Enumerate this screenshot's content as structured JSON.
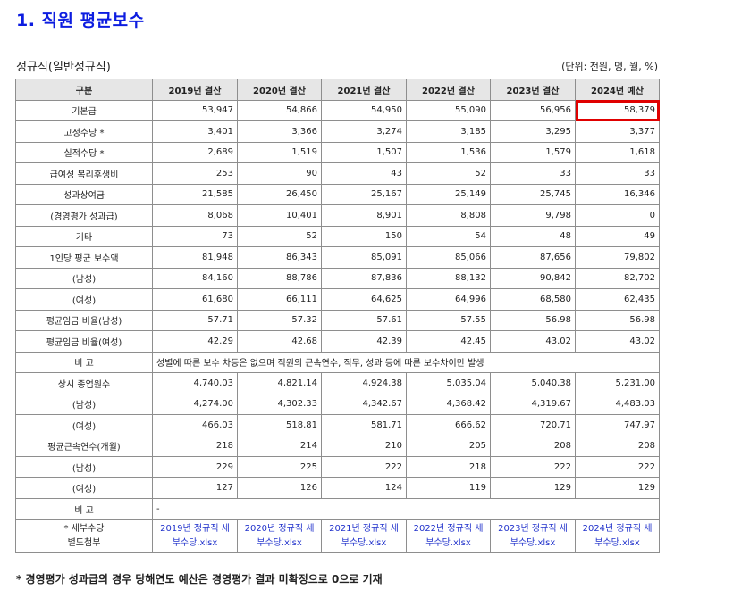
{
  "title": "1. 직원 평균보수",
  "subtitle": "정규직(일반정규직)",
  "unit": "(단위: 천원, 명, 월, %)",
  "header": [
    "구분",
    "2019년 결산",
    "2020년 결산",
    "2021년 결산",
    "2022년 결산",
    "2023년 결산",
    "2024년 예산"
  ],
  "rows1": [
    {
      "label": "기본급",
      "values": [
        "53,947",
        "54,866",
        "54,950",
        "55,090",
        "56,956",
        "58,379"
      ]
    },
    {
      "label": "고정수당 *",
      "values": [
        "3,401",
        "3,366",
        "3,274",
        "3,185",
        "3,295",
        "3,377"
      ]
    },
    {
      "label": "실적수당 *",
      "values": [
        "2,689",
        "1,519",
        "1,507",
        "1,536",
        "1,579",
        "1,618"
      ]
    },
    {
      "label": "급여성 복리후생비",
      "values": [
        "253",
        "90",
        "43",
        "52",
        "33",
        "33"
      ]
    },
    {
      "label": "성과상여금",
      "values": [
        "21,585",
        "26,450",
        "25,167",
        "25,149",
        "25,745",
        "16,346"
      ]
    },
    {
      "label": "(경영평가 성과급)",
      "values": [
        "8,068",
        "10,401",
        "8,901",
        "8,808",
        "9,798",
        "0"
      ]
    },
    {
      "label": "기타",
      "values": [
        "73",
        "52",
        "150",
        "54",
        "48",
        "49"
      ]
    },
    {
      "label": "1인당 평균 보수액",
      "values": [
        "81,948",
        "86,343",
        "85,091",
        "85,066",
        "87,656",
        "79,802"
      ]
    },
    {
      "label": "(남성)",
      "values": [
        "84,160",
        "88,786",
        "87,836",
        "88,132",
        "90,842",
        "82,702"
      ]
    },
    {
      "label": "(여성)",
      "values": [
        "61,680",
        "66,111",
        "64,625",
        "64,996",
        "68,580",
        "62,435"
      ]
    },
    {
      "label": "평균임금 비율(남성)",
      "values": [
        "57.71",
        "57.32",
        "57.61",
        "57.55",
        "56.98",
        "56.98"
      ]
    },
    {
      "label": "평균임금 비율(여성)",
      "values": [
        "42.29",
        "42.68",
        "42.39",
        "42.45",
        "43.02",
        "43.02"
      ]
    }
  ],
  "note1": {
    "label": "비 고",
    "text": "성별에 따른 보수 차등은 없으며 직원의 근속연수, 직무, 성과 등에 따른 보수차이만 발생"
  },
  "rows2": [
    {
      "label": "상시 종업원수",
      "values": [
        "4,740.03",
        "4,821.14",
        "4,924.38",
        "5,035.04",
        "5,040.38",
        "5,231.00"
      ]
    },
    {
      "label": "(남성)",
      "values": [
        "4,274.00",
        "4,302.33",
        "4,342.67",
        "4,368.42",
        "4,319.67",
        "4,483.03"
      ]
    },
    {
      "label": "(여성)",
      "values": [
        "466.03",
        "518.81",
        "581.71",
        "666.62",
        "720.71",
        "747.97"
      ]
    },
    {
      "label": "평균근속연수(개월)",
      "values": [
        "218",
        "214",
        "210",
        "205",
        "208",
        "208"
      ]
    },
    {
      "label": "(남성)",
      "values": [
        "229",
        "225",
        "222",
        "218",
        "222",
        "222"
      ]
    },
    {
      "label": "(여성)",
      "values": [
        "127",
        "126",
        "124",
        "119",
        "129",
        "129"
      ]
    }
  ],
  "note2": {
    "label": "비 고",
    "text": "-"
  },
  "attach": {
    "label_line1": "* 세부수당",
    "label_line2": "별도첨부",
    "files": [
      {
        "line1": "2019년 정규직 세",
        "line2": "부수당.xlsx"
      },
      {
        "line1": "2020년 정규직 세",
        "line2": "부수당.xlsx"
      },
      {
        "line1": "2021년 정규직 세",
        "line2": "부수당.xlsx"
      },
      {
        "line1": "2022년 정규직 세",
        "line2": "부수당.xlsx"
      },
      {
        "line1": "2023년 정규직 세",
        "line2": "부수당.xlsx"
      },
      {
        "line1": "2024년 정규직 세",
        "line2": "부수당.xlsx"
      }
    ]
  },
  "footnote": "* 경영평가 성과급의 경우 당해연도 예산은 경영평가 결과 미확정으로 0으로 기재",
  "colors": {
    "title": "#0d1de0",
    "header_bg": "#e6e6e6",
    "highlight_border": "#e00000",
    "link": "#2233cc"
  }
}
